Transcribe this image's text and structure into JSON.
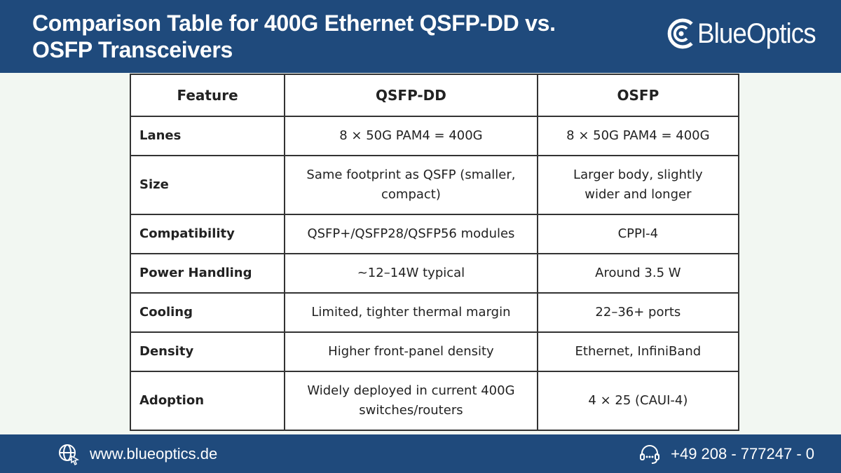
{
  "header": {
    "title_line1": "Comparison Table for 400G Ethernet QSFP-DD vs.",
    "title_line2": "OSFP Transceivers",
    "logo_text": "BlueOptics",
    "colors": {
      "bar": "#1f4a7c",
      "background": "#f2f7f2"
    }
  },
  "table": {
    "headers": [
      "Feature",
      "QSFP-DD",
      "OSFP"
    ],
    "rows": [
      {
        "feature": "Lanes",
        "qsfp_dd": "8 × 50G PAM4 = 400G",
        "osfp": "8 × 50G PAM4 = 400G"
      },
      {
        "feature": "Size",
        "qsfp_dd_line1": "Same footprint as QSFP (smaller,",
        "qsfp_dd_line2": "compact)",
        "osfp_line1": "Larger body, slightly",
        "osfp_line2": "wider and longer"
      },
      {
        "feature": "Compatibility",
        "qsfp_dd": "QSFP+/QSFP28/QSFP56 modules",
        "osfp": "CPPI-4"
      },
      {
        "feature": "Power Handling",
        "qsfp_dd": "~12–14W typical",
        "osfp": "Around 3.5 W"
      },
      {
        "feature": "Cooling",
        "qsfp_dd": "Limited, tighter thermal margin",
        "osfp": "22–36+ ports"
      },
      {
        "feature": "Density",
        "qsfp_dd": "Higher front-panel density",
        "osfp": "Ethernet, InfiniBand"
      },
      {
        "feature": "Adoption",
        "qsfp_dd_line1": "Widely deployed in current 400G",
        "qsfp_dd_line2": "switches/routers",
        "osfp": "4 × 25 (CAUI-4)"
      }
    ]
  },
  "footer": {
    "website": "www.blueoptics.de",
    "phone": "+49 208 - 777247 - 0",
    "website_icon": "globe-cursor-icon",
    "phone_icon": "headset-icon"
  }
}
